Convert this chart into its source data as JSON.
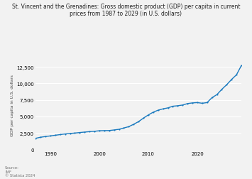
{
  "title": "St. Vincent and the Grenadines: Gross domestic product (GDP) per capita in current\nprices from 1987 to 2029 (in U.S. dollars)",
  "ylabel": "GDP per capita in U.S. dollars",
  "source_text": "Source:\nIMF\n© Statista 2024",
  "line_color": "#1a7abf",
  "bg_color": "#f2f2f2",
  "ylim": [
    0,
    13500
  ],
  "yticks": [
    0,
    2500,
    5000,
    7500,
    10000,
    12500
  ],
  "xlim": [
    1987,
    2029
  ],
  "years": [
    1987,
    1988,
    1989,
    1990,
    1991,
    1992,
    1993,
    1994,
    1995,
    1996,
    1997,
    1998,
    1999,
    2000,
    2001,
    2002,
    2003,
    2004,
    2005,
    2006,
    2007,
    2008,
    2009,
    2010,
    2011,
    2012,
    2013,
    2014,
    2015,
    2016,
    2017,
    2018,
    2019,
    2020,
    2021,
    2022,
    2023,
    2024,
    2025,
    2026,
    2027,
    2028,
    2029
  ],
  "values": [
    1700,
    1860,
    1970,
    2060,
    2160,
    2260,
    2360,
    2430,
    2490,
    2570,
    2640,
    2710,
    2760,
    2840,
    2860,
    2870,
    2960,
    3060,
    3260,
    3460,
    3820,
    4220,
    4750,
    5230,
    5650,
    5950,
    6150,
    6300,
    6550,
    6620,
    6730,
    6950,
    7050,
    7100,
    7000,
    7100,
    7850,
    8300,
    9100,
    9800,
    10600,
    11300,
    12700
  ],
  "title_fontsize": 5.5,
  "ylabel_fontsize": 4.2,
  "tick_fontsize": 5.0,
  "source_fontsize": 3.8,
  "line_width": 1.0,
  "marker_size": 1.5,
  "grid_color": "#ffffff",
  "grid_lw": 0.8
}
